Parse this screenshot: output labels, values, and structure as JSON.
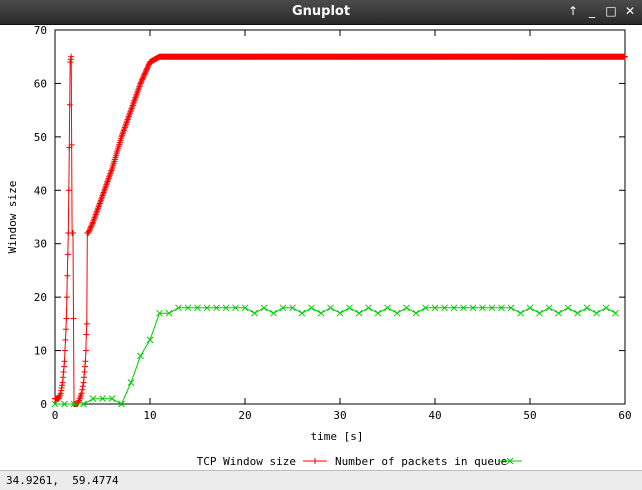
{
  "window": {
    "title": "Gnuplot",
    "buttons": {
      "raise": "↑",
      "minimize": "_",
      "maximize": "□",
      "close": "✕"
    }
  },
  "status": {
    "coordinates": "34.9261,  59.4774"
  },
  "chart_data": {
    "type": "line",
    "xlabel": "time [s]",
    "ylabel": "Window size",
    "xlim": [
      0,
      60
    ],
    "ylim": [
      0,
      70
    ],
    "xticks": [
      0,
      10,
      20,
      30,
      40,
      50,
      60
    ],
    "yticks": [
      0,
      10,
      20,
      30,
      40,
      50,
      60,
      70
    ],
    "grid": false,
    "legend_position": "bottom-center",
    "series": [
      {
        "name": "TCP Window size",
        "color": "#ff0000",
        "marker": "plus",
        "x": [
          0,
          0.2,
          0.4,
          0.6,
          0.7,
          0.8,
          0.9,
          1.0,
          1.1,
          1.2,
          1.3,
          1.4,
          1.45,
          1.5,
          1.55,
          1.6,
          1.65,
          1.7,
          1.8,
          1.9,
          2.0,
          2.2,
          2.4,
          2.6,
          2.8,
          3.0,
          3.1,
          3.2,
          3.25,
          3.3,
          3.35,
          3.4,
          3.5,
          4,
          5,
          6,
          7,
          8,
          9,
          10,
          11,
          11.2,
          15,
          20,
          25,
          30,
          35,
          40,
          45,
          50,
          55,
          60
        ],
        "y": [
          1,
          1,
          1,
          2,
          3,
          4,
          6,
          8,
          12,
          16,
          24,
          32,
          40,
          48,
          56,
          64,
          64.5,
          65,
          32,
          32,
          0,
          0,
          0,
          1,
          2,
          4,
          6,
          8,
          10,
          13,
          15,
          32,
          32,
          34,
          39,
          44,
          50,
          55,
          60,
          64,
          65,
          65,
          65,
          65,
          65,
          65,
          65,
          65,
          65,
          65,
          65,
          65
        ]
      },
      {
        "name": "Number of packets in queue",
        "color": "#00cc00",
        "marker": "cross",
        "x": [
          0,
          1,
          2,
          3,
          4,
          5,
          6,
          7,
          8,
          9,
          10,
          11,
          12,
          13,
          14,
          15,
          16,
          17,
          18,
          19,
          20,
          21,
          22,
          23,
          24,
          25,
          26,
          27,
          28,
          29,
          30,
          31,
          32,
          33,
          34,
          35,
          36,
          37,
          38,
          39,
          40,
          41,
          42,
          43,
          44,
          45,
          46,
          47,
          48,
          49,
          50,
          51,
          52,
          53,
          54,
          55,
          56,
          57,
          58,
          59
        ],
        "y": [
          0,
          0,
          0,
          0,
          1,
          1,
          1,
          0,
          4,
          9,
          12,
          17,
          17,
          18,
          18,
          18,
          18,
          18,
          18,
          18,
          18,
          17,
          18,
          17,
          18,
          18,
          17,
          18,
          17,
          18,
          17,
          18,
          17,
          18,
          17,
          18,
          17,
          18,
          17,
          18,
          18,
          18,
          18,
          18,
          18,
          18,
          18,
          18,
          18,
          17,
          18,
          17,
          18,
          17,
          18,
          17,
          18,
          17,
          18,
          17
        ]
      }
    ]
  }
}
